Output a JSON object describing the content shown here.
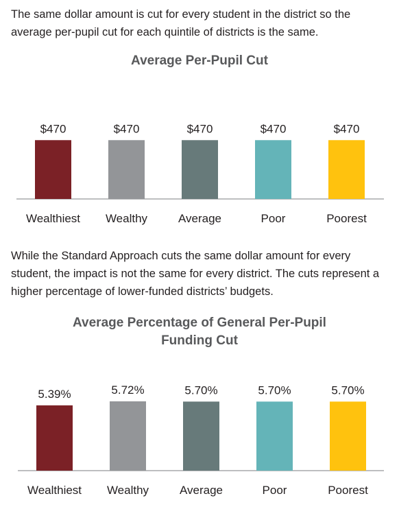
{
  "intro_text": "The same dollar amount is cut for every student in the district so the average per-pupil cut for each quintile of districts is the same.",
  "middle_text": "While the Standard Approach cuts the same dollar amount for every student, the impact is not the same for every district. The cuts represent a higher percentage of lower-funded districts’ budgets.",
  "chart_data": [
    {
      "type": "bar",
      "title": "Average Per-Pupil Cut",
      "categories": [
        "Wealthiest",
        "Wealthy",
        "Average",
        "Poor",
        "Poorest"
      ],
      "values": [
        470,
        470,
        470,
        470,
        470
      ],
      "value_labels": [
        "$470",
        "$470",
        "$470",
        "$470",
        "$470"
      ],
      "colors": [
        "#7b2126",
        "#939598",
        "#677a7a",
        "#64b4b8",
        "#ffc20e"
      ],
      "ylim": [
        0,
        540
      ],
      "grid": false,
      "legend": "none"
    },
    {
      "type": "bar",
      "title": "Average Percentage of General Per-Pupil Funding Cut",
      "title_lines": [
        "Average Percentage of General Per-Pupil",
        "Funding Cut"
      ],
      "categories": [
        "Wealthiest",
        "Wealthy",
        "Average",
        "Poor",
        "Poorest"
      ],
      "values": [
        5.39,
        5.72,
        5.7,
        5.7,
        5.7
      ],
      "value_labels": [
        "5.39%",
        "5.72%",
        "5.70%",
        "5.70%",
        "5.70%"
      ],
      "colors": [
        "#7b2126",
        "#939598",
        "#677a7a",
        "#64b4b8",
        "#ffc20e"
      ],
      "ylim": [
        0,
        5.72
      ],
      "grid": false,
      "legend": "none"
    }
  ]
}
